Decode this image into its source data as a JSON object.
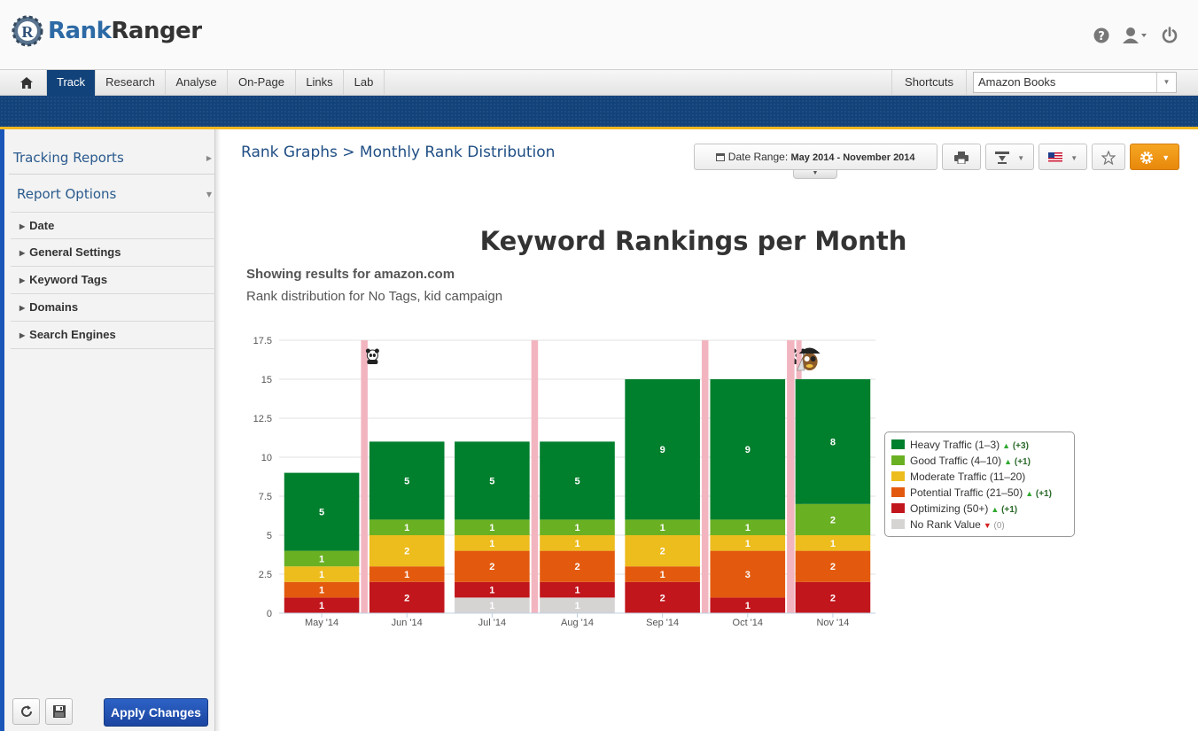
{
  "app": {
    "logo_part1": "Rank",
    "logo_part2": "Ranger"
  },
  "nav": {
    "tabs": [
      "Track",
      "Research",
      "Analyse",
      "On-Page",
      "Links",
      "Lab"
    ],
    "active": "Track",
    "shortcuts": "Shortcuts",
    "campaign": "Amazon Books"
  },
  "sidebar": {
    "tracking_reports": "Tracking Reports",
    "report_options": "Report Options",
    "items": [
      "Date",
      "General Settings",
      "Keyword Tags",
      "Domains",
      "Search Engines"
    ],
    "apply": "Apply Changes"
  },
  "page": {
    "breadcrumb": "Rank Graphs > Monthly Rank Distribution",
    "date_range_label": "Date Range:",
    "date_range_value": "May 2014 - November 2014",
    "showing": "Showing results for amazon.com",
    "distribution": "Rank distribution for No Tags, kid campaign"
  },
  "colors": {
    "heavy": "#007f2d",
    "good": "#6ab023",
    "moderate": "#edbc1d",
    "potential": "#e35a0e",
    "optimizing": "#c1161c",
    "norank": "#d6d3d3",
    "annotation": "#f2b5c0",
    "nav_active": "#12427a",
    "accent": "#f2b820"
  },
  "chart_data": {
    "type": "bar",
    "stacked": true,
    "title": "Keyword Rankings per Month",
    "categories": [
      "May '14",
      "Jun '14",
      "Jul '14",
      "Aug '14",
      "Sep '14",
      "Oct '14",
      "Nov '14"
    ],
    "ylim": [
      0,
      17.5
    ],
    "yticks": [
      "0",
      "2.5",
      "5",
      "7.5",
      "10",
      "12.5",
      "15",
      "17.5"
    ],
    "series": [
      {
        "name": "No Rank Value",
        "key": "norank",
        "values": [
          0,
          0,
          1,
          1,
          0,
          0,
          0
        ]
      },
      {
        "name": "Optimizing (50+)",
        "key": "optimizing",
        "values": [
          1,
          2,
          1,
          1,
          2,
          1,
          2
        ]
      },
      {
        "name": "Potential Traffic (21–50)",
        "key": "potential",
        "values": [
          1,
          1,
          2,
          2,
          1,
          3,
          2
        ]
      },
      {
        "name": "Moderate Traffic (11–20)",
        "key": "moderate",
        "values": [
          1,
          2,
          1,
          1,
          2,
          1,
          1
        ]
      },
      {
        "name": "Good Traffic (4–10)",
        "key": "good",
        "values": [
          1,
          1,
          1,
          1,
          1,
          1,
          2
        ]
      },
      {
        "name": "Heavy Traffic (1–3)",
        "key": "heavy",
        "values": [
          5,
          5,
          5,
          5,
          9,
          9,
          8
        ]
      }
    ],
    "legend": [
      {
        "label": "Heavy Traffic (1–3)",
        "key": "heavy",
        "change": "(+3)",
        "dir": "up"
      },
      {
        "label": "Good Traffic (4–10)",
        "key": "good",
        "change": "(+1)",
        "dir": "up"
      },
      {
        "label": "Moderate Traffic (11–20)",
        "key": "moderate",
        "change": "",
        "dir": ""
      },
      {
        "label": "Potential Traffic (21–50)",
        "key": "potential",
        "change": "(+1)",
        "dir": "up"
      },
      {
        "label": "Optimizing (50+)",
        "key": "optimizing",
        "change": "(+1)",
        "dir": "up"
      },
      {
        "label": "No Rank Value",
        "key": "norank",
        "change": "(0)",
        "dir": "down"
      }
    ],
    "annotations": [
      {
        "between": [
          0,
          1
        ],
        "icon": "panda"
      },
      {
        "between": [
          2,
          3
        ],
        "icon": ""
      },
      {
        "between": [
          4,
          5
        ],
        "icon": ""
      },
      {
        "between": [
          5,
          6
        ],
        "icon": "panda"
      },
      {
        "between": [
          6,
          6
        ],
        "icon": "pirate"
      }
    ]
  }
}
